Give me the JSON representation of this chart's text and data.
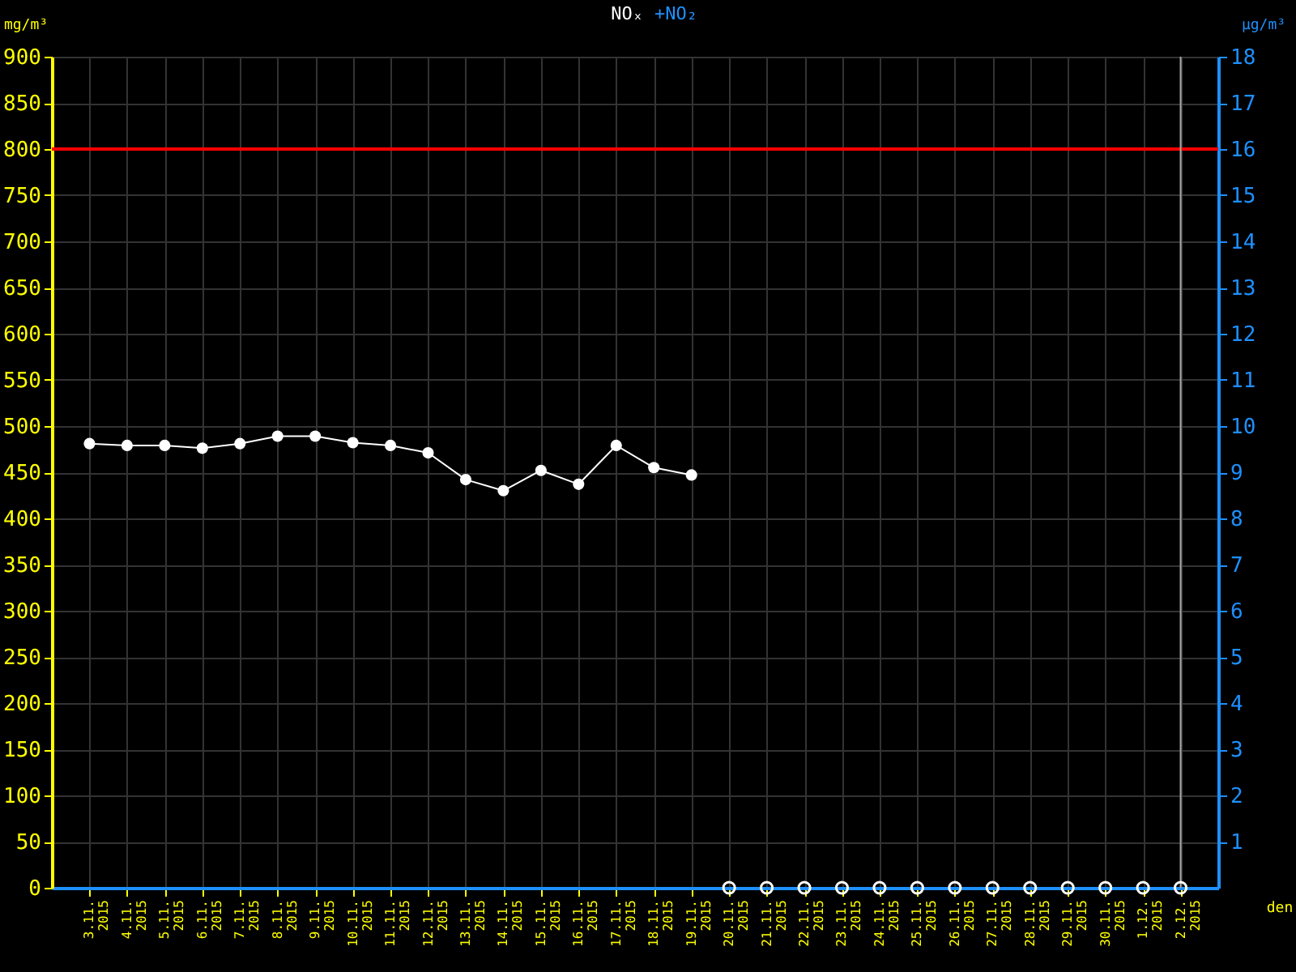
{
  "chart_data": {
    "type": "line",
    "title": "NOₓ",
    "subtitle": "+NO₂",
    "xlabel": "den",
    "ylabel": "mg/m³",
    "y2label": "µg/m³",
    "categories": [
      "3.11. 2015",
      "4.11. 2015",
      "5.11. 2015",
      "6.11. 2015",
      "7.11. 2015",
      "8.11. 2015",
      "9.11. 2015",
      "10.11. 2015",
      "11.11. 2015",
      "12.11. 2015",
      "13.11. 2015",
      "14.11. 2015",
      "15.11. 2015",
      "16.11. 2015",
      "17.11. 2015",
      "18.11. 2015",
      "19.11. 2015",
      "20.11. 2015",
      "21.11. 2015",
      "22.11. 2015",
      "23.11. 2015",
      "24.11. 2015",
      "25.11. 2015",
      "26.11. 2015",
      "27.11. 2015",
      "28.11. 2015",
      "29.11. 2015",
      "30.11. 2015",
      "1.12. 2015",
      "2.12. 2015"
    ],
    "series": [
      {
        "color": "#ffffff",
        "values": [
          481,
          479,
          479,
          476,
          481,
          489,
          489,
          482,
          479,
          471,
          442,
          430,
          452,
          437,
          479,
          455,
          447,
          null,
          null,
          null,
          null,
          null,
          null,
          null,
          null,
          null,
          null,
          null,
          null,
          null
        ]
      },
      {
        "type": "scatter",
        "color": "#ffffff",
        "values": [
          null,
          null,
          null,
          null,
          null,
          null,
          null,
          null,
          null,
          null,
          null,
          null,
          null,
          null,
          null,
          null,
          null,
          0,
          0,
          0,
          0,
          0,
          0,
          0,
          0,
          0,
          0,
          0,
          0,
          0
        ]
      }
    ],
    "ylim": [
      0,
      900
    ],
    "yticks": [
      0,
      50,
      100,
      150,
      200,
      250,
      300,
      350,
      400,
      450,
      500,
      550,
      600,
      650,
      700,
      750,
      800,
      850,
      900
    ],
    "y2lim": [
      0,
      18
    ],
    "y2ticks": [
      1,
      2,
      3,
      4,
      5,
      6,
      7,
      8,
      9,
      10,
      11,
      12,
      13,
      14,
      15,
      16,
      17,
      18
    ],
    "ref_lines": [
      {
        "axis": "y",
        "value": 800,
        "color": "#ff0000"
      },
      {
        "axis": "x",
        "value": "2.12. 2015",
        "color": "#aaaaaa"
      }
    ],
    "grid": true,
    "marker": "circle",
    "legend": false
  }
}
